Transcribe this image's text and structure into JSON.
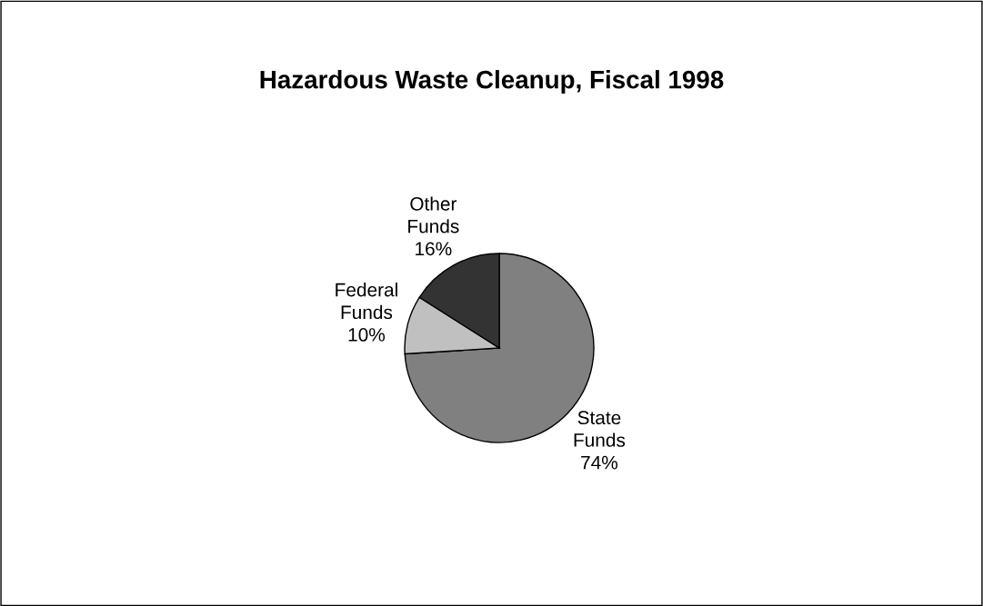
{
  "chart_data": {
    "type": "pie",
    "title": "Hazardous Waste Cleanup, Fiscal 1998",
    "categories": [
      "State\nFunds",
      "Federal\nFunds",
      "Other\nFunds"
    ],
    "values": [
      74,
      10,
      16
    ],
    "colors": [
      "#808080",
      "#c0c0c0",
      "#333333"
    ],
    "value_labels": [
      "74%",
      "10%",
      "16%"
    ]
  }
}
